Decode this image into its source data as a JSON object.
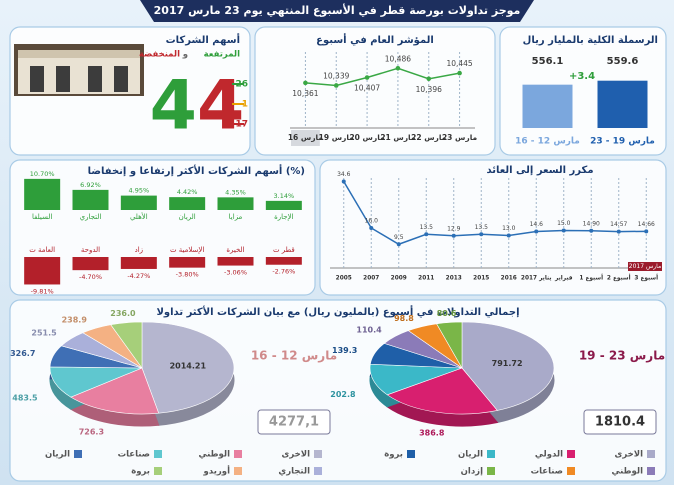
{
  "title": "موجز تداولات بورصة قطر في الأسبوع المنتهي يوم 23 مارس 2017",
  "chart_data": [
    {
      "type": "bar",
      "title": "الرسملة الكلية بالمليار ريال",
      "categories": [
        "16 - 12 مارس",
        "23 - 19 مارس"
      ],
      "values": [
        556.1,
        559.6
      ],
      "colors": [
        "#7ba7dd",
        "#1f5fae"
      ],
      "annotation": "+3.4",
      "ylim": [
        518,
        569
      ]
    },
    {
      "type": "line",
      "title": "المؤشر العام في أسبوع",
      "categories": [
        "16 مارس",
        "19 مارس",
        "20 مارس",
        "21 مارس",
        "22 مارس",
        "23 مارس"
      ],
      "values": [
        10361,
        10339,
        10407,
        10486,
        10396,
        10445
      ],
      "value_labels": [
        "10,361",
        "10,339",
        "10,407",
        "10,486",
        "10,396",
        "10,445"
      ],
      "color": "#3aa845",
      "ylim": [
        10000,
        10600
      ]
    },
    {
      "type": "stat",
      "title": "أسهم الشركات",
      "subtitle_parts": [
        "المرتفعة",
        "و",
        "المنخفضة"
      ],
      "total": 44,
      "values": [
        26,
        1,
        17
      ],
      "colors": [
        "#2e9e3a",
        "#e8a000",
        "#c0282d"
      ]
    },
    {
      "type": "bar",
      "title": "أسهم الشركات الأكثر إرتفاعا و إنخفاضا (%)",
      "categories": [
        "السيلفا",
        "التجاري",
        "الأهلي",
        "الريان",
        "مزايا",
        "الإجارة"
      ],
      "values": [
        10.7,
        6.92,
        4.95,
        4.42,
        4.35,
        3.14
      ],
      "value_labels": [
        "10.70%",
        "6.92%",
        "4.95%",
        "4.42%",
        "4.35%",
        "3.14%"
      ],
      "color": "#2e9e3a",
      "ylim": [
        0,
        11
      ]
    },
    {
      "type": "bar",
      "categories": [
        "العامة ت",
        "الدوحة",
        "زاد",
        "الإسلامية ت",
        "الخيرة",
        "قطر ت"
      ],
      "values": [
        -9.81,
        -4.7,
        -4.27,
        -3.8,
        -3.06,
        -2.76
      ],
      "value_labels": [
        "-9.81%",
        "-4.70%",
        "-4.27%",
        "-3.80%",
        "-3.06%",
        "-2.76%"
      ],
      "color": "#b3202a",
      "ylim": [
        -10,
        0
      ]
    },
    {
      "type": "line",
      "title": "مكرر السعر إلى العائد",
      "categories": [
        "2005",
        "2007",
        "2009",
        "2011",
        "2013",
        "2015",
        "2016",
        "يناير 2017",
        "فبراير",
        "أسبوع 1",
        "أسبوع 2",
        "أسبوع 3"
      ],
      "values": [
        34.6,
        16.0,
        9.5,
        13.5,
        12.9,
        13.5,
        13.0,
        14.6,
        15.0,
        14.9,
        14.57,
        14.66
      ],
      "value_labels": [
        "34.6",
        "16.0",
        "9.5",
        "13.5",
        "12.9",
        "13.5",
        "13.0",
        "14.6",
        "15.0",
        "14.90",
        "14.57",
        "14.66"
      ],
      "color": "#2b6fb6",
      "annotation": "مارس 2017",
      "ylim": [
        0,
        40
      ]
    },
    {
      "type": "pie",
      "title": "إجمالي التداولات في أسبوع (بالمليون ريال) مع بيان الشركات الأكثر تداولا",
      "period": "19 - 23 مارس",
      "total_label": "1810.4",
      "categories": [
        "الاخرى",
        "الدولي",
        "الريان",
        "بروة",
        "الوطني",
        "صناعات",
        "إزدان"
      ],
      "values": [
        791.72,
        386.8,
        202.8,
        139.3,
        110.4,
        98.8,
        80.6
      ],
      "value_labels": [
        "791.72",
        "386.8",
        "202.8",
        "139.3",
        "110.4",
        "98.8",
        "80.6"
      ],
      "colors": [
        "#a9aac9",
        "#d81f6f",
        "#3bb8c8",
        "#1f5fa8",
        "#8b7bb8",
        "#f08a24",
        "#7ab648"
      ]
    },
    {
      "type": "pie",
      "period": "16 - 12 مارس",
      "total_label": "4277,1",
      "categories": [
        "الاخرى",
        "الوطني",
        "صناعات",
        "الريان",
        "التجاري",
        "أوريدو",
        "بروة"
      ],
      "values": [
        2014.21,
        726.3,
        483.5,
        326.7,
        251.5,
        238.9,
        236.0
      ],
      "value_labels": [
        "2014.21",
        "726.3",
        "483.5",
        "326.7",
        "251.5",
        "238.9",
        "236.0"
      ],
      "colors": [
        "#b5b6cf",
        "#e87fa0",
        "#5fc7cf",
        "#3f6fb5",
        "#aab0da",
        "#f4b183",
        "#a6cf7a"
      ]
    }
  ]
}
